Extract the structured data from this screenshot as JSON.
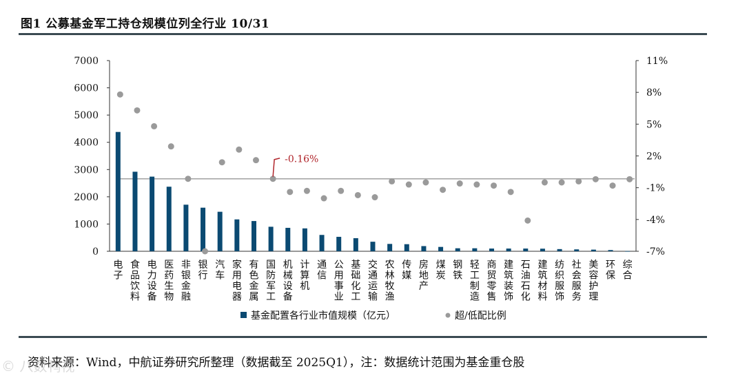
{
  "title": "图1  公募基金军工持仓规模位列全行业 10/31",
  "source": "资料来源：Wind，中航证券研究所整理（数据截至 2025Q1），注：数据统计范围为基金重仓股",
  "watermark": "© 八数鸭视",
  "colors": {
    "bar": "#0b4a72",
    "dot": "#9a9a9a",
    "refline": "#a0a0a0",
    "annotation": "#b0242a",
    "rule": "#3a4a52"
  },
  "chart_data": {
    "type": "bar+scatter",
    "categories": [
      "电子",
      "食品饮料",
      "电力设备",
      "医药生物",
      "非银金融",
      "银行",
      "汽车",
      "家用电器",
      "有色金属",
      "国防军工",
      "机械设备",
      "计算机",
      "通信",
      "公用事业",
      "基础化工",
      "交通运输",
      "农林牧渔",
      "传媒",
      "房地产",
      "煤炭",
      "钢铁",
      "轻工制造",
      "商贸零售",
      "建筑装饰",
      "石油石化",
      "建筑材料",
      "纺织服饰",
      "社会服务",
      "美容护理",
      "环保",
      "综合"
    ],
    "series": [
      {
        "name": "基金配置各行业市值规模（亿元）",
        "kind": "bar",
        "axis": "left",
        "values": [
          4380,
          2920,
          2740,
          2370,
          1710,
          1600,
          1450,
          1170,
          1110,
          900,
          860,
          840,
          600,
          530,
          480,
          350,
          270,
          260,
          190,
          160,
          110,
          110,
          100,
          100,
          100,
          95,
          80,
          70,
          60,
          45,
          5
        ]
      },
      {
        "name": "超/低配比例",
        "kind": "scatter",
        "axis": "right",
        "values": [
          7.8,
          6.3,
          4.8,
          2.9,
          -0.16,
          -7.0,
          1.4,
          2.6,
          1.6,
          -0.16,
          -1.4,
          -1.3,
          -2.0,
          -1.3,
          -1.7,
          -1.9,
          -0.4,
          -0.7,
          -0.5,
          -1.2,
          -0.6,
          -0.7,
          -0.8,
          -1.4,
          -4.1,
          -0.5,
          -0.5,
          -0.4,
          -0.2,
          -0.8,
          -0.2
        ]
      }
    ],
    "y_left": {
      "min": 0,
      "max": 7000,
      "ticks": [
        "0",
        "1000",
        "2000",
        "3000",
        "4000",
        "5000",
        "6000",
        "7000"
      ]
    },
    "y_right": {
      "min": -7,
      "max": 11,
      "ticks": [
        "-7%",
        "-4%",
        "-1%",
        "2%",
        "5%",
        "8%",
        "11%"
      ]
    },
    "reference_line": {
      "value": -0.16,
      "label": "-0.16%"
    },
    "legend": [
      "基金配置各行业市值规模（亿元）",
      "超/低配比例"
    ],
    "legend_position": "bottom"
  }
}
